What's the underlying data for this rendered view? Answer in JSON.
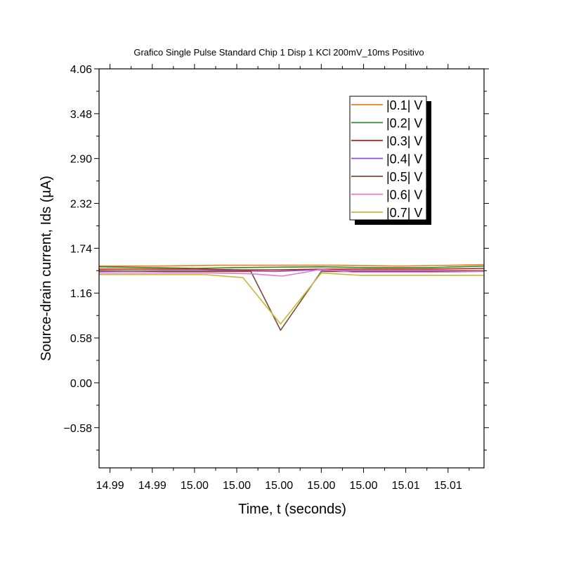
{
  "chart_data": {
    "type": "line",
    "title": "Grafico Single Pulse Standard Chip 1 Disp 1 KCl 200mV_10ms Positivo",
    "xlabel": "Time, t (seconds)",
    "ylabel": "Source-drain current, Ids (µA)",
    "ylim": [
      -1.1,
      4.06
    ],
    "yticks": [
      -0.58,
      0.0,
      0.58,
      1.16,
      1.74,
      2.32,
      2.9,
      3.48,
      4.06
    ],
    "ytick_labels": [
      "−0.58",
      "0.00",
      "0.58",
      "1.16",
      "1.74",
      "2.32",
      "2.90",
      "3.48",
      "4.06"
    ],
    "xlim": [
      14.9888,
      15.0134
    ],
    "xtick_values": [
      14.9895,
      14.9922,
      14.9949,
      14.9976,
      15.0003,
      15.003,
      15.0057,
      15.0084,
      15.0111
    ],
    "xtick_labels": [
      "14.99",
      "14.99",
      "15.00",
      "15.00",
      "15.00",
      "15.00",
      "15.00",
      "15.01",
      "15.01"
    ],
    "grid": false,
    "legend_position": "top-right",
    "series": [
      {
        "name": "|0.1| V",
        "color": "#f07f17",
        "x": [
          14.9888,
          14.9925,
          14.9965,
          15.0,
          15.004,
          15.008,
          15.0115,
          15.0134
        ],
        "y": [
          1.51,
          1.51,
          1.52,
          1.52,
          1.52,
          1.51,
          1.52,
          1.53
        ]
      },
      {
        "name": "|0.2| V",
        "color": "#2e8b2e",
        "x": [
          14.9888,
          14.992,
          14.995,
          14.9975,
          15.003,
          15.006,
          15.01,
          15.0134
        ],
        "y": [
          1.5,
          1.49,
          1.48,
          1.49,
          1.5,
          1.49,
          1.49,
          1.51
        ]
      },
      {
        "name": "|0.3| V",
        "color": "#cc1a1a",
        "x": [
          14.9888,
          14.992,
          14.995,
          14.998,
          15.0,
          15.003,
          15.006,
          15.01,
          15.0134
        ],
        "y": [
          1.47,
          1.47,
          1.47,
          1.46,
          1.46,
          1.47,
          1.47,
          1.47,
          1.48
        ]
      },
      {
        "name": "|0.4| V",
        "color": "#8855c8",
        "x": [
          14.9888,
          14.993,
          14.997,
          15.0,
          15.0025,
          15.005,
          15.01,
          15.0134
        ],
        "y": [
          1.44,
          1.45,
          1.45,
          1.44,
          1.46,
          1.45,
          1.45,
          1.45
        ]
      },
      {
        "name": "|0.5| V",
        "color": "#7b4a3a",
        "x": [
          14.9888,
          14.993,
          14.9975,
          14.9985,
          15.0004,
          15.003,
          15.005,
          15.01,
          15.0134
        ],
        "y": [
          1.45,
          1.44,
          1.44,
          1.44,
          0.68,
          1.44,
          1.44,
          1.44,
          1.45
        ]
      },
      {
        "name": "|0.6| V",
        "color": "#e07ad0",
        "x": [
          14.9888,
          14.992,
          14.996,
          14.9985,
          15.0005,
          15.002,
          15.003,
          15.005,
          15.01,
          15.0134
        ],
        "y": [
          1.42,
          1.42,
          1.42,
          1.41,
          1.38,
          1.43,
          1.47,
          1.43,
          1.43,
          1.44
        ]
      },
      {
        "name": "|0.7| V",
        "color": "#c2bc38",
        "x": [
          14.9888,
          14.992,
          14.9955,
          14.998,
          15.0004,
          15.003,
          15.0055,
          15.01,
          15.0134
        ],
        "y": [
          1.4,
          1.4,
          1.4,
          1.36,
          0.76,
          1.42,
          1.39,
          1.39,
          1.39
        ]
      }
    ]
  }
}
